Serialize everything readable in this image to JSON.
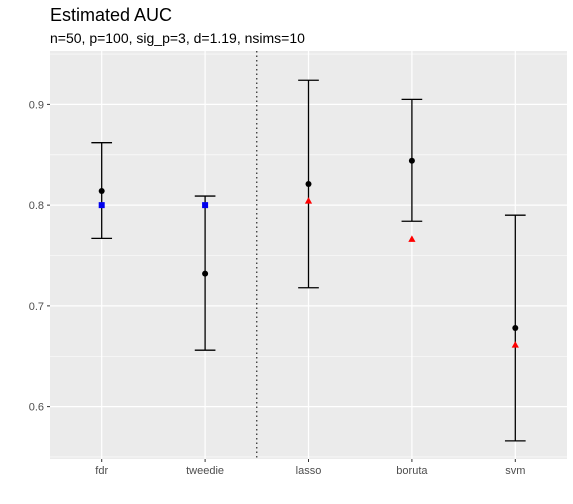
{
  "chart_data": {
    "type": "scatter",
    "subtype": "point-errorbar",
    "title": "Estimated AUC",
    "subtitle": "n=50, p=100, sig_p=3, d=1.19, nsims=10",
    "xlabel": "",
    "ylabel": "",
    "categories": [
      "fdr",
      "tweedie",
      "lasso",
      "boruta",
      "svm"
    ],
    "ylim": [
      0.548,
      0.953
    ],
    "y_ticks": [
      0.6,
      0.7,
      0.8,
      0.9
    ],
    "y_tick_labels": [
      "0.6",
      "0.7",
      "0.8",
      "0.9"
    ],
    "grid": true,
    "panel_background": "#ebebeb",
    "grid_color": "#ffffff",
    "divider_after_category": "tweedie",
    "legend": "none",
    "series": [
      {
        "marker": "circle",
        "color": "#000000",
        "values": [
          0.814,
          0.732,
          0.821,
          0.844,
          0.678
        ],
        "lower": [
          0.767,
          0.656,
          0.718,
          0.784,
          0.566
        ],
        "upper": [
          0.862,
          0.809,
          0.924,
          0.905,
          0.79
        ]
      },
      {
        "marker": "square",
        "color": "#0000ee",
        "categories": [
          "fdr",
          "tweedie"
        ],
        "values": [
          0.8,
          0.8
        ]
      },
      {
        "marker": "triangle",
        "color": "#ff0000",
        "categories": [
          "lasso",
          "boruta",
          "svm"
        ],
        "values": [
          0.804,
          0.766,
          0.661
        ]
      }
    ]
  }
}
